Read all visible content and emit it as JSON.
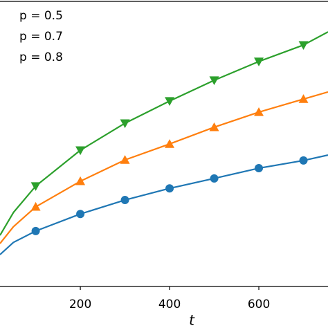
{
  "chart_data": {
    "type": "line",
    "x_label": "t",
    "xlim": [
      20,
      755
    ],
    "ylim": [
      0,
      100
    ],
    "xticks": [
      200,
      400,
      600
    ],
    "legend": "upper left",
    "series": [
      {
        "name": "p = 0.5",
        "color": "#1f77b4",
        "marker": "circle",
        "x": [
          20,
          50,
          100,
          200,
          300,
          400,
          500,
          600,
          700,
          755
        ],
        "values": [
          11.2,
          15.5,
          19.5,
          25.5,
          30.4,
          34.5,
          38.0,
          41.6,
          44.3,
          46.2
        ],
        "marker_x": [
          100,
          200,
          300,
          400,
          500,
          600,
          700
        ],
        "marker_values": [
          19.5,
          25.5,
          30.4,
          34.5,
          38.0,
          41.6,
          44.3
        ]
      },
      {
        "name": "p = 0.7",
        "color": "#ff7f0e",
        "marker": "triangle-up",
        "x": [
          20,
          50,
          100,
          200,
          300,
          400,
          500,
          600,
          700,
          755
        ],
        "values": [
          15.1,
          21.0,
          28.0,
          37.0,
          44.5,
          50.1,
          56.0,
          61.3,
          65.9,
          68.4
        ],
        "marker_x": [
          100,
          200,
          300,
          400,
          500,
          600,
          700
        ],
        "marker_values": [
          28.0,
          37.0,
          44.5,
          50.1,
          56.0,
          61.3,
          65.9
        ]
      },
      {
        "name": "p = 0.8",
        "color": "#2ca02c",
        "marker": "triangle-down",
        "x": [
          20,
          50,
          100,
          200,
          300,
          400,
          500,
          600,
          700,
          755
        ],
        "values": [
          18.0,
          26.0,
          35.3,
          47.9,
          57.4,
          65.2,
          72.5,
          79.1,
          84.9,
          89.5
        ],
        "marker_x": [
          100,
          200,
          300,
          400,
          500,
          600,
          700
        ],
        "marker_values": [
          35.3,
          47.9,
          57.4,
          65.2,
          72.5,
          79.1,
          84.9
        ]
      }
    ]
  }
}
